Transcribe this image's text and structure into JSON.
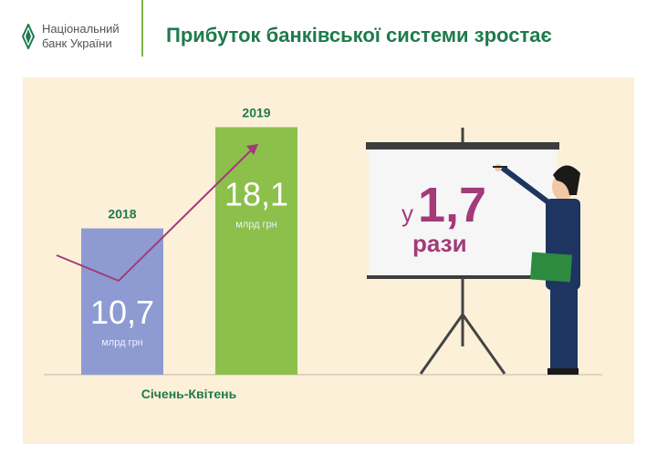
{
  "header": {
    "org_line1": "Національний",
    "org_line2": "банк України",
    "title": "Прибуток банківської системи зростає"
  },
  "chart_data": {
    "type": "bar",
    "title": "Прибуток банківської системи зростає",
    "xlabel": "Січень-Квітень",
    "categories": [
      "2018",
      "2019"
    ],
    "values": [
      10.7,
      18.1
    ],
    "value_labels": [
      "10,7",
      "18,1"
    ],
    "unit": "млрд грн",
    "colors": [
      "#8e9bd2",
      "#8cc04b"
    ],
    "trend_arrow": true
  },
  "board": {
    "prefix": "у",
    "ratio": "1,7",
    "suffix": "рази",
    "color": "#a43a7a"
  },
  "colors": {
    "brand": "#1f7a4c",
    "panel": "#fdf0d9",
    "accent": "#a43a7a"
  }
}
